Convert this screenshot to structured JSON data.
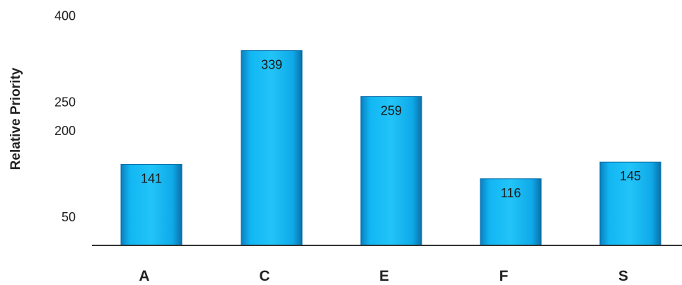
{
  "chart_data": {
    "type": "bar",
    "categories": [
      "A",
      "C",
      "E",
      "F",
      "S"
    ],
    "values": [
      141,
      339,
      259,
      116,
      145
    ],
    "data_labels": [
      "141",
      "339",
      "259",
      "116",
      "145"
    ],
    "ylabel": "Relative Priority",
    "y_tick_labels": [
      "50",
      "200",
      "250",
      "400"
    ],
    "y_tick_values": [
      50,
      200,
      250,
      400
    ],
    "ylim": [
      0,
      400
    ],
    "grid": false,
    "bar_color": "#0fb3f0",
    "bar_color_dark": "#0a6fa8",
    "axis_color": "#333333"
  }
}
